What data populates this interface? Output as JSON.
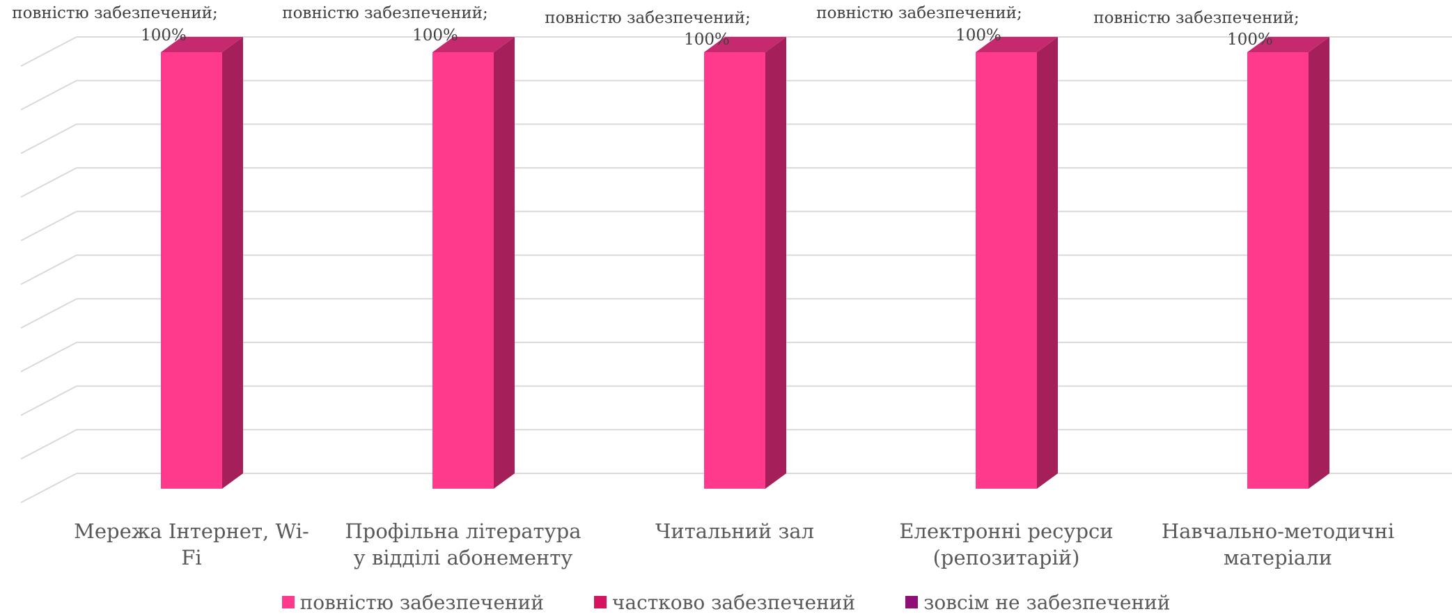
{
  "chart_data": {
    "type": "bar",
    "title": "",
    "xlabel": "",
    "ylabel": "",
    "ylim": [
      0,
      100
    ],
    "grid": true,
    "legend_position": "bottom",
    "categories": [
      [
        "Мережа Інтернет, Wi-",
        "Fi"
      ],
      [
        "Профільна література",
        "у відділі абонементу"
      ],
      [
        "Читальний зал"
      ],
      [
        "Електронні ресурси",
        "(репозитарій)"
      ],
      [
        "Навчально-методичні",
        "матеріали"
      ]
    ],
    "series": [
      {
        "name": "повністю забезпечений",
        "values": [
          100,
          100,
          100,
          100,
          100
        ],
        "color": "#FF3A8C"
      },
      {
        "name": "частково   забезпечений",
        "values": [
          0,
          0,
          0,
          0,
          0
        ],
        "color": "#D6135F"
      },
      {
        "name": "зовсім  не  забезпечений",
        "values": [
          0,
          0,
          0,
          0,
          0
        ],
        "color": "#8E0F76"
      }
    ],
    "data_labels": [
      [
        "повністю забезпечений;",
        "100%"
      ],
      [
        "повністю забезпечений;",
        "100%"
      ],
      [
        "повністю забезпечений;",
        "100%"
      ],
      [
        "повністю забезпечений;",
        "100%"
      ],
      [
        "повністю забезпечений;",
        "100%"
      ]
    ]
  },
  "colors": {
    "bar_side": "#A5205A",
    "bar_top": "#C62A6E",
    "grid": "#D9D9D9",
    "text": "#595959"
  }
}
